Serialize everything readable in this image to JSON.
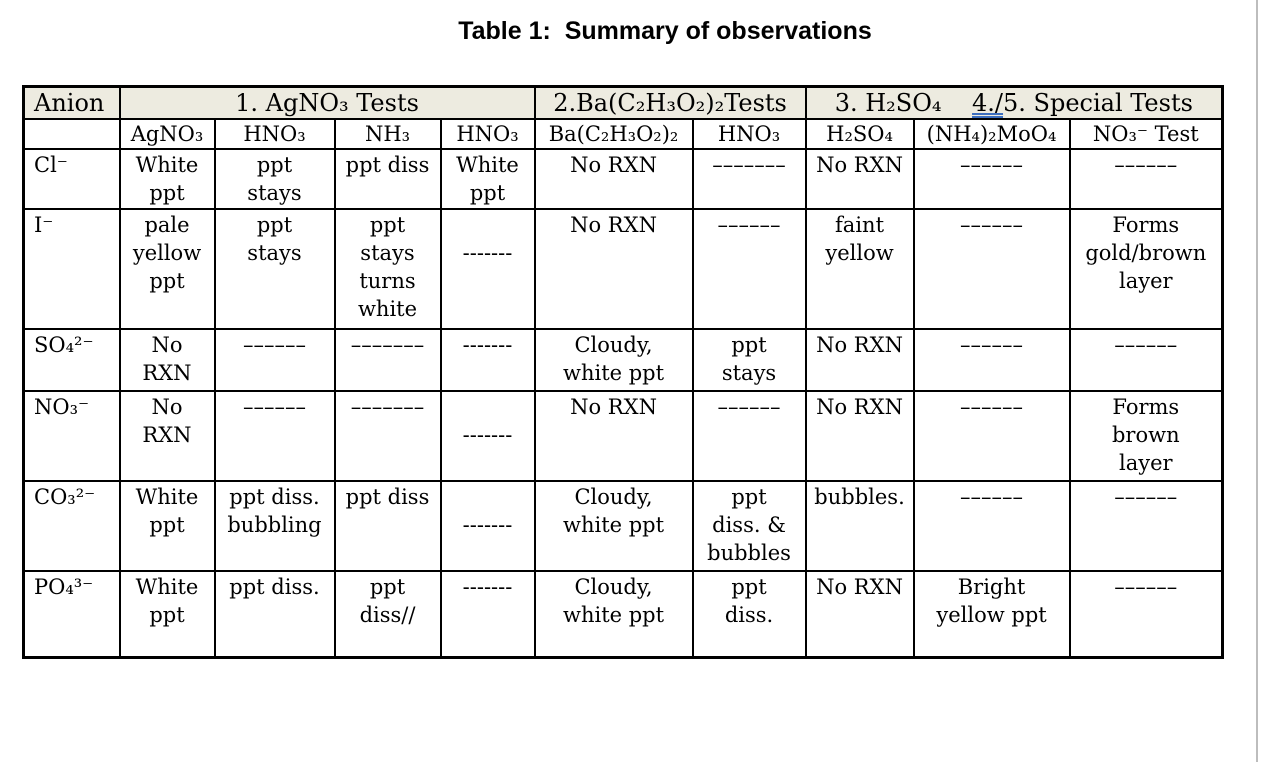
{
  "title": "Table 1:  Summary of observations",
  "colors": {
    "header_bg": "#EDEBE0",
    "border": "#000000",
    "accent_underline": "#3C6EBF",
    "page_edge": "#BDBDBD"
  },
  "table": {
    "header_groups": {
      "anion": "Anion",
      "agno3": "1. AgNO₃ Tests",
      "ba": "2.Ba(C₂H₃O₂)₂Tests",
      "h2so4_prefix": "3. H₂SO₄    ",
      "special_underlined": "4./",
      "special_rest": "5. Special Tests"
    },
    "sub_headers": [
      "",
      "AgNO₃",
      "HNO₃",
      "NH₃",
      "HNO₃",
      "Ba(C₂H₃O₂)₂",
      "HNO₃",
      "H₂SO₄",
      "(NH₄)₂MoO₄",
      "NO₃⁻ Test"
    ],
    "rows": [
      {
        "anion": "Cl⁻",
        "cells": [
          [
            "White",
            "ppt"
          ],
          [
            "ppt",
            "stays"
          ],
          [
            "ppt diss"
          ],
          [
            "White",
            "ppt"
          ],
          [
            "No RXN"
          ],
          [
            "–––––––"
          ],
          [
            "No RXN"
          ],
          [
            "––––––"
          ],
          [
            "––––––"
          ]
        ]
      },
      {
        "anion": "I⁻",
        "cells": [
          [
            "pale",
            "yellow",
            "ppt"
          ],
          [
            "ppt",
            "stays"
          ],
          [
            "ppt",
            "stays",
            "turns",
            "white"
          ],
          [
            "",
            "-------"
          ],
          [
            "No RXN"
          ],
          [
            "––––––"
          ],
          [
            "faint",
            "yellow"
          ],
          [
            "––––––"
          ],
          [
            "Forms",
            "gold/brown",
            "layer"
          ]
        ]
      },
      {
        "anion": "SO₄²⁻",
        "cells": [
          [
            "No",
            "RXN"
          ],
          [
            "––––––"
          ],
          [
            "–––––––"
          ],
          [
            "-------"
          ],
          [
            "Cloudy,",
            "white ppt"
          ],
          [
            "ppt",
            "stays"
          ],
          [
            "No RXN"
          ],
          [
            "––––––"
          ],
          [
            "––––––"
          ]
        ]
      },
      {
        "anion": "NO₃⁻",
        "cells": [
          [
            "No",
            "RXN"
          ],
          [
            "––––––"
          ],
          [
            "–––––––"
          ],
          [
            "",
            "-------"
          ],
          [
            "No RXN"
          ],
          [
            "––––––"
          ],
          [
            "No RXN"
          ],
          [
            "––––––"
          ],
          [
            "Forms",
            "brown",
            "layer"
          ]
        ]
      },
      {
        "anion": "CO₃²⁻",
        "cells": [
          [
            "White",
            "ppt"
          ],
          [
            "ppt diss.",
            "bubbling"
          ],
          [
            "ppt diss"
          ],
          [
            "",
            "-------"
          ],
          [
            "Cloudy,",
            "white ppt"
          ],
          [
            "ppt",
            "diss. &",
            "bubbles"
          ],
          [
            "bubbles."
          ],
          [
            "––––––"
          ],
          [
            "––––––"
          ]
        ]
      },
      {
        "anion": "PO₄³⁻",
        "cells": [
          [
            "White",
            "ppt"
          ],
          [
            "ppt diss."
          ],
          [
            "ppt",
            "diss//"
          ],
          [
            "-------"
          ],
          [
            "Cloudy,",
            "white ppt"
          ],
          [
            "ppt",
            "diss."
          ],
          [
            "No RXN"
          ],
          [
            "Bright",
            "yellow ppt"
          ],
          [
            "––––––"
          ]
        ]
      }
    ]
  }
}
